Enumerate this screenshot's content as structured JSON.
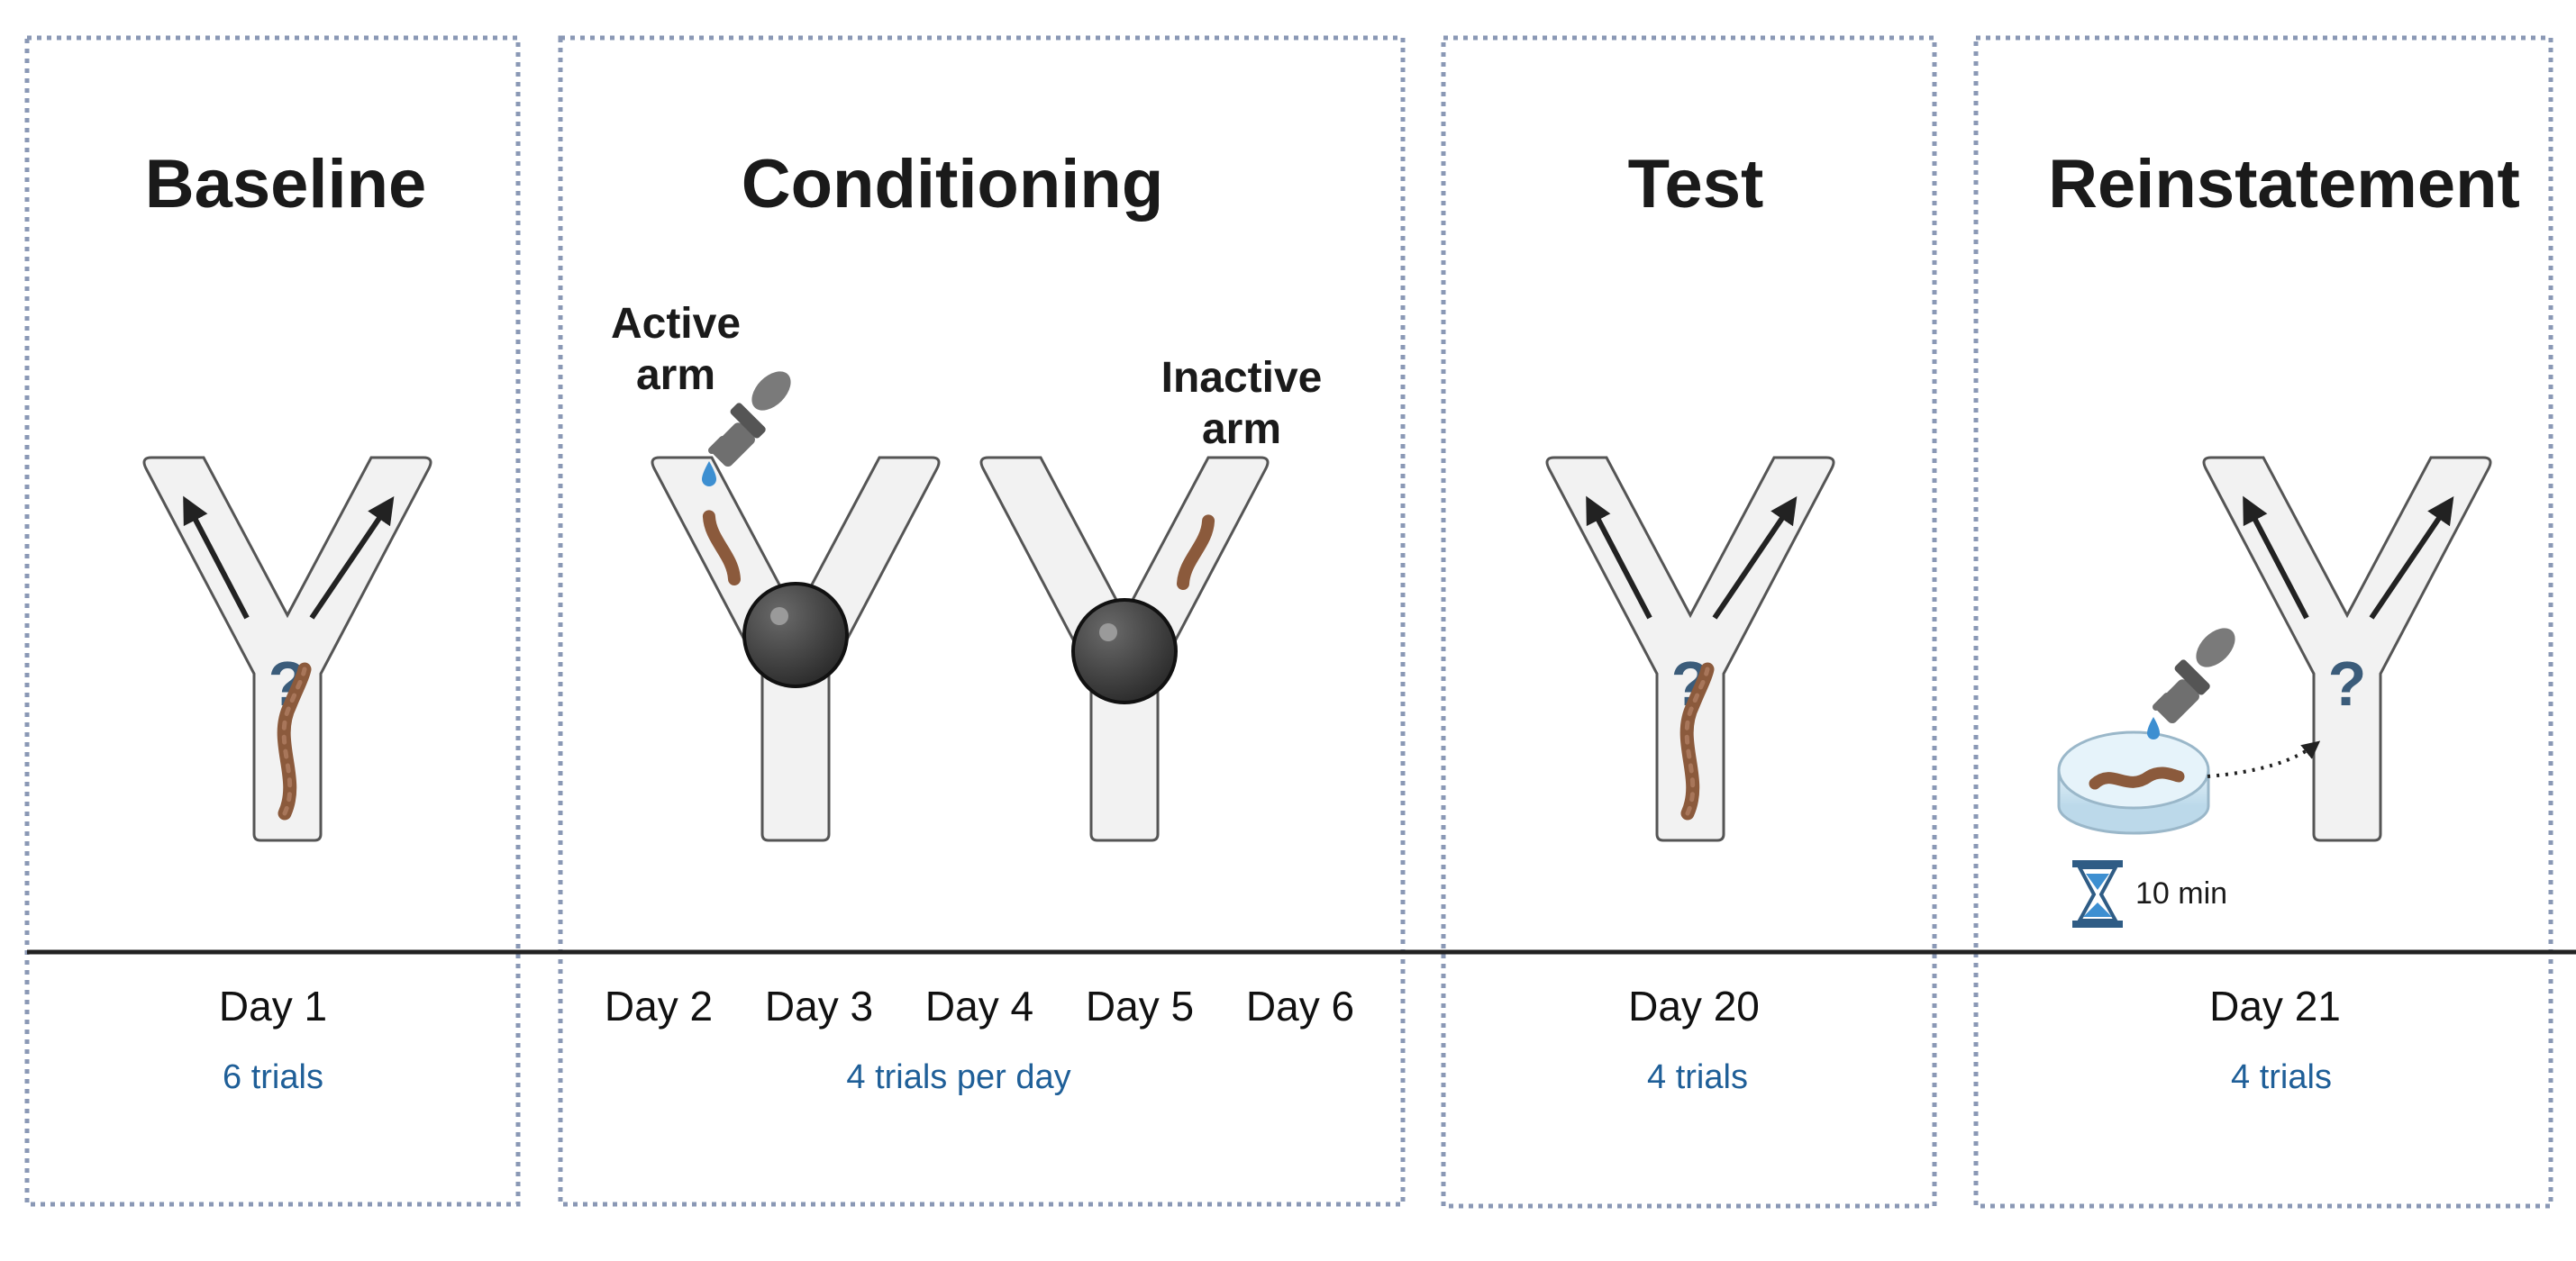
{
  "colors": {
    "panel_border": "#8a98b5",
    "trials_text": "#1f5f98",
    "maze_fill": "#f2f2f2",
    "maze_stroke": "#555555",
    "worm": "#8b5a3c",
    "ball": "#3c3c3c",
    "dropper": "#6f6f6f",
    "droplet": "#3d8fd1",
    "question": "#3b5c7a",
    "timeline": "#222222"
  },
  "panels": {
    "baseline": {
      "title": "Baseline",
      "days": [
        "Day 1"
      ],
      "trials": "6 trials"
    },
    "conditioning": {
      "title": "Conditioning",
      "days": [
        "Day 2",
        "Day 3",
        "Day 4",
        "Day 5",
        "Day 6"
      ],
      "trials": "4 trials per day",
      "active_arm_label": [
        "Active",
        "arm"
      ],
      "inactive_arm_label": [
        "Inactive",
        "arm"
      ]
    },
    "test": {
      "title": "Test",
      "days": [
        "Day 20"
      ],
      "trials": "4 trials"
    },
    "reinstatement": {
      "title": "Reinstatement",
      "days": [
        "Day 21"
      ],
      "trials": "4 trials",
      "timer_label": "10 min"
    }
  },
  "icons": {
    "dropper": "dropper-icon",
    "hourglass": "hourglass-icon",
    "petri_dish": "petri-dish-icon",
    "worm": "worm-icon",
    "ball": "ball-icon"
  }
}
